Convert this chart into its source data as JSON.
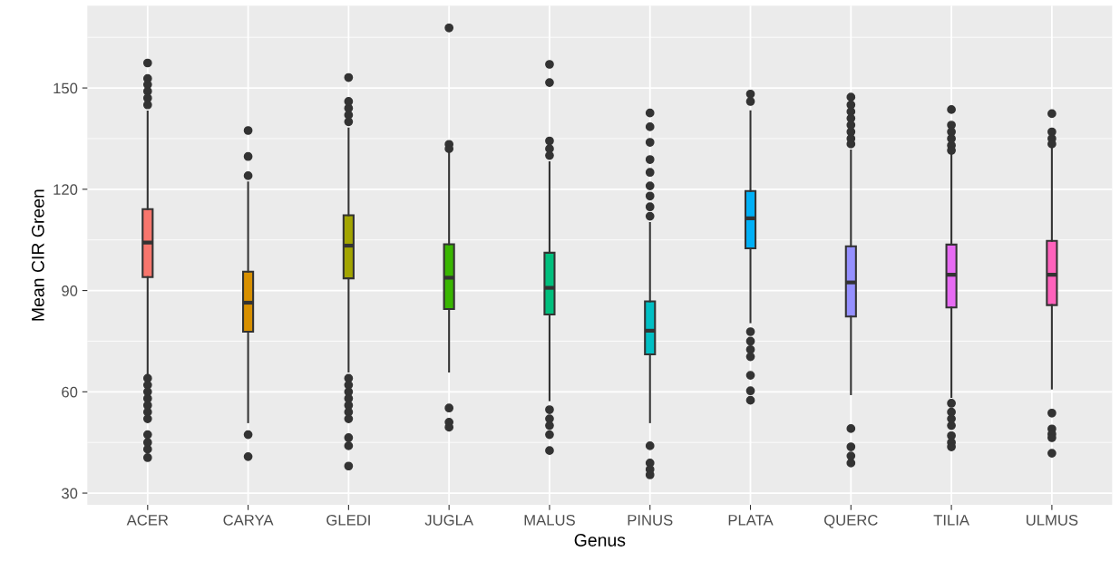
{
  "chart_data": {
    "type": "box",
    "xlabel": "Genus",
    "ylabel": "Mean CIR Green",
    "categories": [
      "ACER",
      "CARYA",
      "GLEDI",
      "JUGLA",
      "MALUS",
      "PINUS",
      "PLATA",
      "QUERC",
      "TILIA",
      "ULMUS"
    ],
    "colors": [
      "#f8766d",
      "#d89000",
      "#a3a500",
      "#39b600",
      "#00bf7d",
      "#00bfc4",
      "#00b0f6",
      "#9590ff",
      "#e76bf3",
      "#ff62bc"
    ],
    "boxes": [
      {
        "low": 65,
        "q1": 94,
        "median": 104.2,
        "q3": 114.1,
        "high": 143,
        "outliers": [
          157.4,
          152.8,
          151,
          149,
          147,
          145,
          64,
          62,
          60,
          58,
          56,
          54,
          52,
          47.3,
          45,
          43,
          40.5
        ]
      },
      {
        "low": 51,
        "q1": 77.8,
        "median": 86.4,
        "q3": 95.6,
        "high": 122,
        "outliers": [
          137.4,
          129.7,
          124,
          47.3,
          40.8
        ]
      },
      {
        "low": 66,
        "q1": 93.6,
        "median": 103.3,
        "q3": 112.3,
        "high": 138,
        "outliers": [
          153.1,
          146,
          144,
          142,
          140,
          64,
          62,
          60,
          58,
          56,
          54,
          52,
          46.4,
          44,
          38
        ]
      },
      {
        "low": 66,
        "q1": 84.5,
        "median": 93.8,
        "q3": 103.7,
        "high": 131,
        "outliers": [
          167.8,
          133.3,
          132,
          55.2,
          51,
          49.5
        ]
      },
      {
        "low": 57.5,
        "q1": 82.9,
        "median": 90.8,
        "q3": 101.2,
        "high": 128,
        "outliers": [
          157,
          151.6,
          134.3,
          132,
          130,
          54.7,
          52,
          50,
          47.3,
          42.6
        ]
      },
      {
        "low": 51,
        "q1": 71.1,
        "median": 78.1,
        "q3": 86.8,
        "high": 110,
        "outliers": [
          142.6,
          138.5,
          133.9,
          128.8,
          125,
          121,
          118,
          114.8,
          112,
          44,
          38.9,
          37,
          35.4
        ]
      },
      {
        "low": 80.6,
        "q1": 102.5,
        "median": 111.4,
        "q3": 119.5,
        "high": 143.1,
        "outliers": [
          148.2,
          146,
          77.8,
          75,
          72.5,
          70.4,
          64.9,
          60.3,
          57.5
        ]
      },
      {
        "low": 59.3,
        "q1": 82.3,
        "median": 92.4,
        "q3": 103.1,
        "high": 131.5,
        "outliers": [
          147.3,
          145,
          143,
          141,
          139,
          137,
          135,
          133.4,
          49.1,
          43.7,
          41,
          38.9
        ]
      },
      {
        "low": 58.5,
        "q1": 85,
        "median": 94.7,
        "q3": 103.6,
        "high": 130.7,
        "outliers": [
          143.6,
          139,
          137,
          135,
          133,
          131.5,
          56.6,
          54,
          52,
          50,
          47,
          45,
          43.7
        ]
      },
      {
        "low": 61,
        "q1": 85.7,
        "median": 94.7,
        "q3": 104.7,
        "high": 132.5,
        "outliers": [
          142.4,
          137,
          135,
          133.4,
          53.7,
          49,
          47.5,
          46.4,
          41.8
        ]
      }
    ],
    "ylim": [
      26.5,
      174.4
    ],
    "yticks": [
      30,
      60,
      90,
      120,
      150
    ],
    "grid": true,
    "legend": false
  }
}
